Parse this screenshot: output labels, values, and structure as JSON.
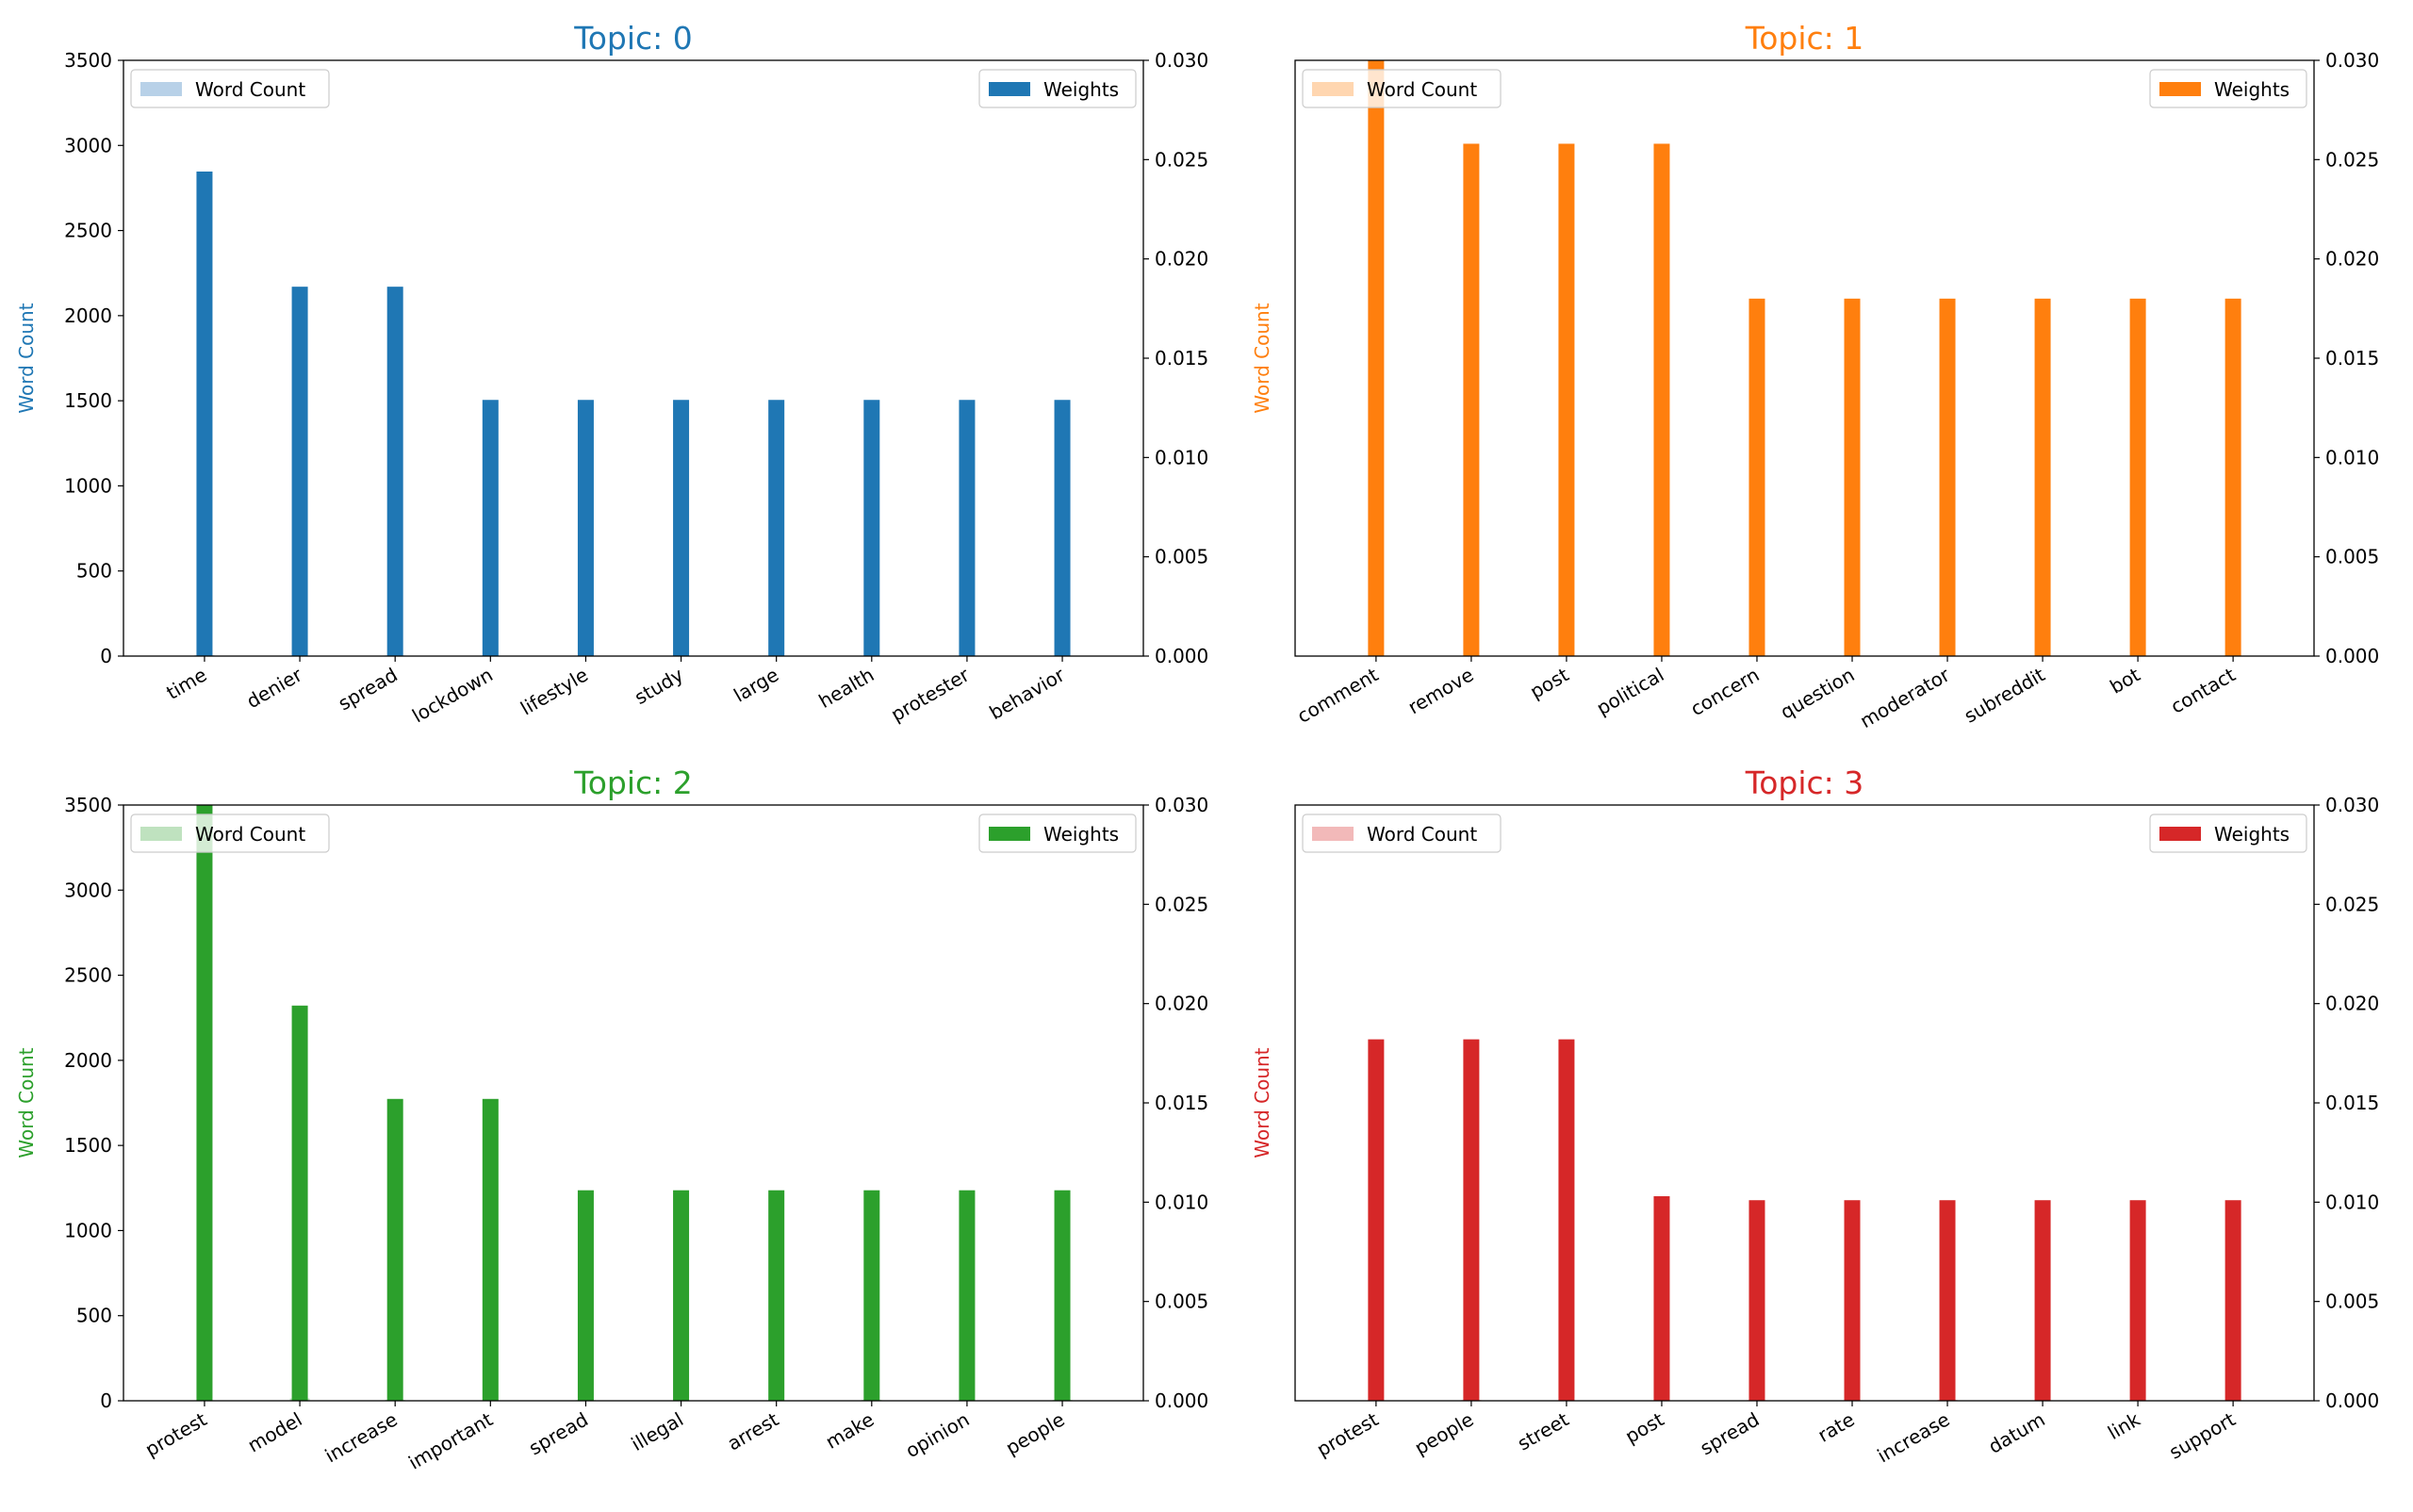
{
  "chart_data": [
    {
      "type": "bar",
      "title": "Topic: 0",
      "color": "#1f77b4",
      "legend_light_color": "#b8d1e8",
      "ylabel": "Word Count",
      "y_left_lim": [
        0,
        3500
      ],
      "y_left_ticks": [
        "0",
        "500",
        "1000",
        "1500",
        "2000",
        "2500",
        "3000",
        "3500"
      ],
      "y_right_lim": [
        0,
        0.03
      ],
      "y_right_ticks": [
        "0.000",
        "0.005",
        "0.010",
        "0.015",
        "0.020",
        "0.025",
        "0.030"
      ],
      "categories": [
        "time",
        "denier",
        "spread",
        "lockdown",
        "lifestyle",
        "study",
        "large",
        "health",
        "protester",
        "behavior"
      ],
      "series": [
        {
          "name": "Word Count",
          "axis": "left",
          "values": [
            5,
            2,
            4,
            1,
            1,
            1,
            1,
            1,
            1,
            1
          ]
        },
        {
          "name": "Weights",
          "axis": "right",
          "values": [
            0.0244,
            0.0186,
            0.0186,
            0.0129,
            0.0129,
            0.0129,
            0.0129,
            0.0129,
            0.0129,
            0.0129
          ]
        }
      ],
      "legend": {
        "left": {
          "label": "Word Count",
          "position": "upper-left"
        },
        "right": {
          "label": "Weights",
          "position": "upper-right"
        }
      },
      "show_left_ticks": true
    },
    {
      "type": "bar",
      "title": "Topic: 1",
      "color": "#ff7f0e",
      "legend_light_color": "#ffd6b0",
      "ylabel": "Word Count",
      "y_left_lim": [
        0,
        3500
      ],
      "y_left_ticks": [],
      "y_right_lim": [
        0,
        0.03
      ],
      "y_right_ticks": [
        "0.000",
        "0.005",
        "0.010",
        "0.015",
        "0.020",
        "0.025",
        "0.030"
      ],
      "categories": [
        "comment",
        "remove",
        "post",
        "political",
        "concern",
        "question",
        "moderator",
        "subreddit",
        "bot",
        "contact"
      ],
      "series": [
        {
          "name": "Word Count",
          "axis": "left",
          "values": [
            0,
            0,
            0,
            0,
            0,
            0,
            0,
            0,
            0,
            0
          ]
        },
        {
          "name": "Weights",
          "axis": "right",
          "values": [
            0.0301,
            0.0258,
            0.0258,
            0.0258,
            0.018,
            0.018,
            0.018,
            0.018,
            0.018,
            0.018
          ]
        }
      ],
      "legend": {
        "left": {
          "label": "Word Count",
          "position": "upper-left"
        },
        "right": {
          "label": "Weights",
          "position": "upper-right"
        }
      },
      "show_left_ticks": false
    },
    {
      "type": "bar",
      "title": "Topic: 2",
      "color": "#2ca02c",
      "legend_light_color": "#bfe2bf",
      "ylabel": "Word Count",
      "y_left_lim": [
        0,
        3500
      ],
      "y_left_ticks": [
        "0",
        "500",
        "1000",
        "1500",
        "2000",
        "2500",
        "3000",
        "3500"
      ],
      "y_right_lim": [
        0,
        0.03
      ],
      "y_right_ticks": [
        "0.000",
        "0.005",
        "0.010",
        "0.015",
        "0.020",
        "0.025",
        "0.030"
      ],
      "categories": [
        "protest",
        "model",
        "increase",
        "important",
        "spread",
        "illegal",
        "arrest",
        "make",
        "opinion",
        "people"
      ],
      "series": [
        {
          "name": "Word Count",
          "axis": "left",
          "values": [
            3,
            14,
            6,
            1,
            4,
            1,
            1,
            6,
            1,
            5
          ]
        },
        {
          "name": "Weights",
          "axis": "right",
          "values": [
            0.0301,
            0.0199,
            0.0152,
            0.0152,
            0.0106,
            0.0106,
            0.0106,
            0.0106,
            0.0106,
            0.0106
          ]
        }
      ],
      "legend": {
        "left": {
          "label": "Word Count",
          "position": "upper-left"
        },
        "right": {
          "label": "Weights",
          "position": "upper-right"
        }
      },
      "show_left_ticks": true
    },
    {
      "type": "bar",
      "title": "Topic: 3",
      "color": "#d62728",
      "legend_light_color": "#f2b9b9",
      "ylabel": "Word Count",
      "y_left_lim": [
        0,
        3500
      ],
      "y_left_ticks": [],
      "y_right_lim": [
        0,
        0.03
      ],
      "y_right_ticks": [
        "0.000",
        "0.005",
        "0.010",
        "0.015",
        "0.020",
        "0.025",
        "0.030"
      ],
      "categories": [
        "protest",
        "people",
        "street",
        "post",
        "spread",
        "rate",
        "increase",
        "datum",
        "link",
        "support"
      ],
      "series": [
        {
          "name": "Word Count",
          "axis": "left",
          "values": [
            3,
            5,
            1,
            1,
            4,
            1,
            6,
            3,
            1,
            1
          ]
        },
        {
          "name": "Weights",
          "axis": "right",
          "values": [
            0.0182,
            0.0182,
            0.0182,
            0.0103,
            0.0101,
            0.0101,
            0.0101,
            0.0101,
            0.0101,
            0.0101
          ]
        }
      ],
      "legend": {
        "left": {
          "label": "Word Count",
          "position": "upper-left"
        },
        "right": {
          "label": "Weights",
          "position": "upper-right"
        }
      },
      "show_left_ticks": false
    }
  ]
}
